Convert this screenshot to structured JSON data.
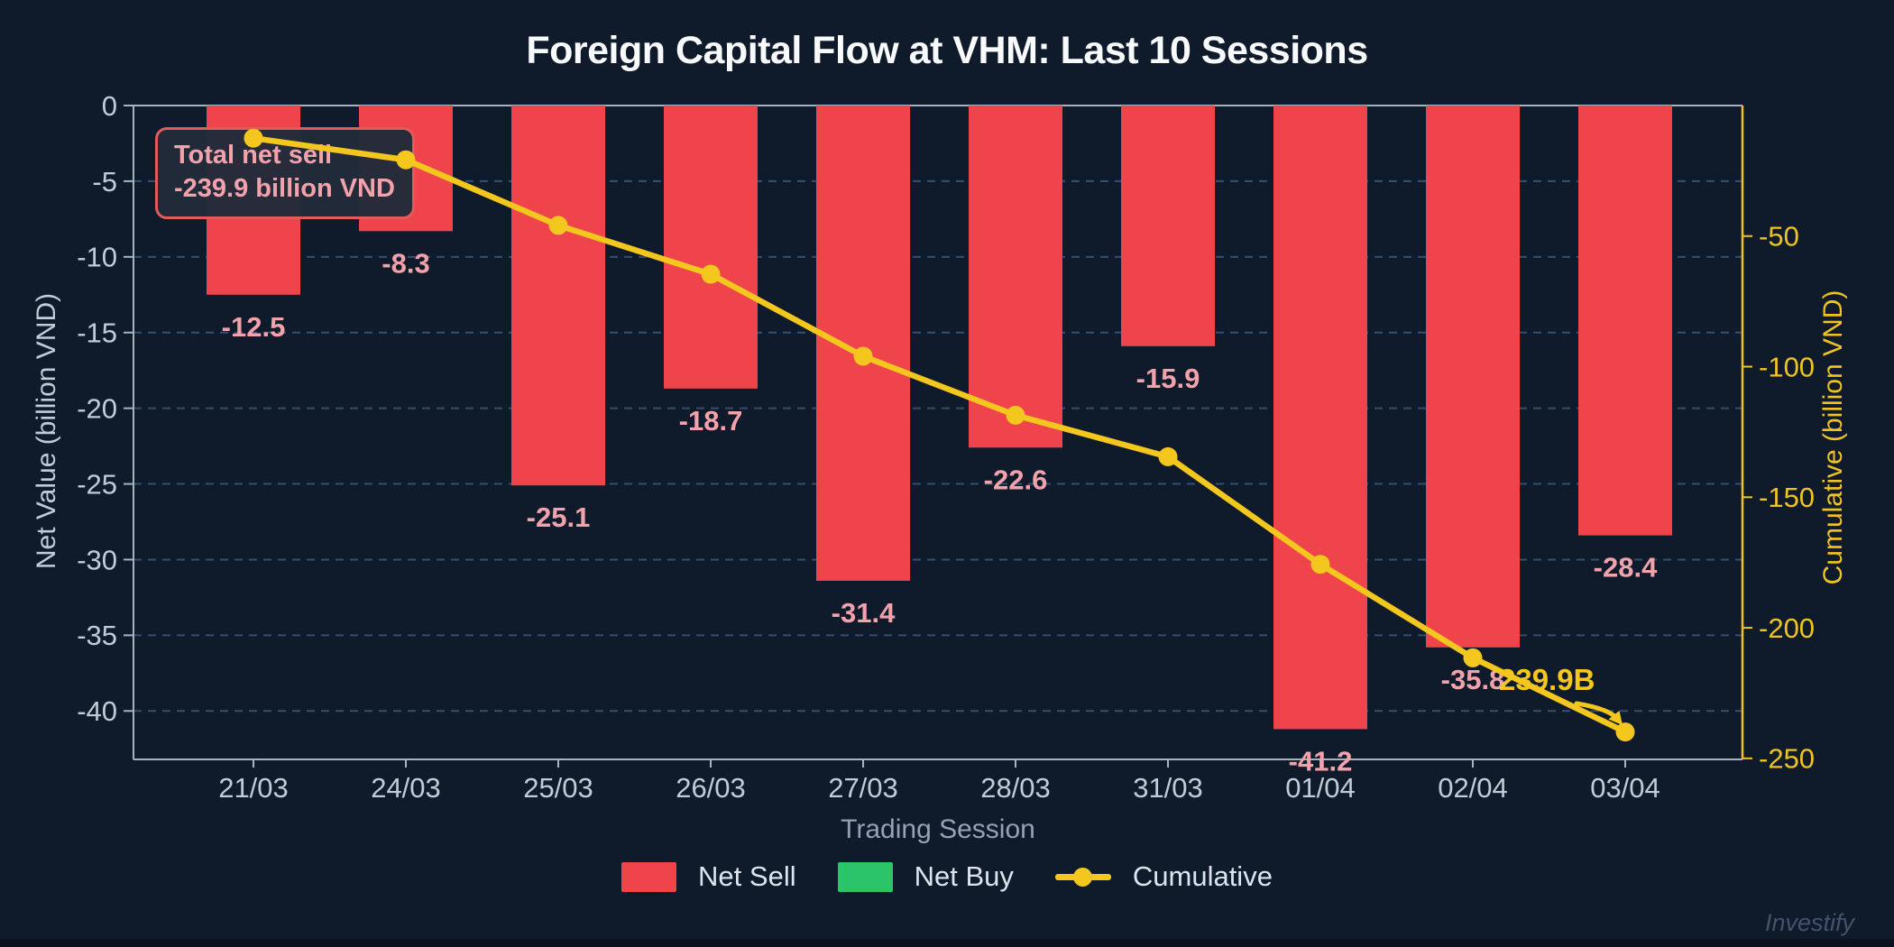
{
  "watermark": "Investify",
  "chart_data": {
    "type": "bar",
    "title": "Foreign Capital Flow at VHM: Last 10 Sessions",
    "categories": [
      "21/03",
      "24/03",
      "25/03",
      "26/03",
      "27/03",
      "28/03",
      "31/03",
      "01/04",
      "02/04",
      "03/04"
    ],
    "series": [
      {
        "name": "Net Sell",
        "type": "bar",
        "yaxis": "left",
        "color": "#ef444c",
        "values": [
          -12.5,
          -8.3,
          -25.1,
          -18.7,
          -31.4,
          -22.6,
          -15.9,
          -41.2,
          -35.8,
          -28.4
        ]
      },
      {
        "name": "Net Buy",
        "type": "bar",
        "yaxis": "left",
        "color": "#2bc46a",
        "values": []
      },
      {
        "name": "Cumulative",
        "type": "line",
        "yaxis": "right",
        "color": "#f3c71d",
        "values": [
          -12.5,
          -20.8,
          -45.9,
          -64.6,
          -96.0,
          -118.6,
          -134.5,
          -175.7,
          -211.5,
          -239.9
        ]
      }
    ],
    "xlabel": "Trading Session",
    "ylabel_left": "Net Value (billion VND)",
    "ylabel_right": "Cumulative (billion VND)",
    "yticks_left": [
      0,
      -5,
      -10,
      -15,
      -20,
      -25,
      -30,
      -35,
      -40
    ],
    "yticks_right": [
      -50,
      -100,
      -150,
      -200,
      -250
    ],
    "ylim_left": [
      -43.2,
      0
    ],
    "ylim_right": [
      -250.4,
      0
    ],
    "grid": "horizontal dashed",
    "legend_position": "bottom center",
    "bar_value_labels": true,
    "annotations": {
      "total_box": {
        "line1": "Total net sell",
        "line2": "-239.9 billion VND"
      },
      "final_point": "239.9B"
    },
    "colors": {
      "background": "#0f1a2b",
      "bar_label": "#f2a2ab",
      "grid": "#3d5878",
      "spine": "#a9b3c0",
      "tick_label": "#c2ccd9",
      "right_axis": "#f0c420",
      "line": "#f3c71d",
      "tooltip_border": "#e25b5b",
      "title": "#f8fafc"
    }
  }
}
